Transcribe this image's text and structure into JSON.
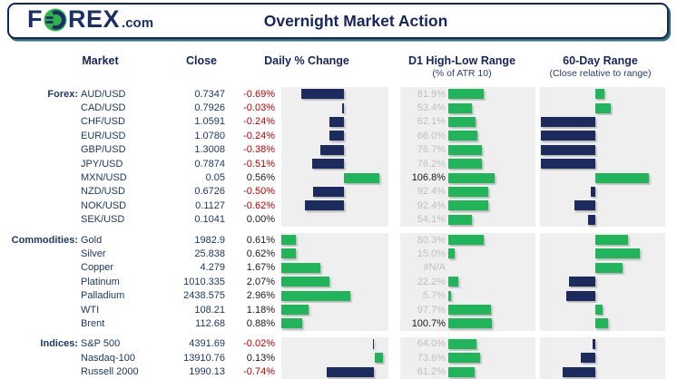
{
  "header": {
    "logo_f": "F",
    "logo_rex": "REX",
    "logo_tld": ".com",
    "title": "Overnight Market Action"
  },
  "columns": {
    "market": "Market",
    "close": "Close",
    "daily": "Daily % Change",
    "d1_title": "D1 High-Low Range",
    "d1_sub": "(% of ATR 10)",
    "sixty_title": "60-Day Range",
    "sixty_sub": "(Close relative to range)"
  },
  "colors": {
    "navy": "#1c2a5e",
    "green": "#22b45a",
    "red": "#c00000",
    "panel_gray": "#efefef",
    "label_gray": "#bfbfbf",
    "header_navy": "#16265a"
  },
  "chart_data": {
    "type": "bar",
    "legend_position": "none",
    "d1_xlim": [
      0,
      200
    ],
    "sixty_xlim": [
      0,
      112.5
    ],
    "sixty_axis": 50,
    "groups": [
      {
        "label": "Forex:",
        "daily_xlim": [
          -1.0,
          0.7
        ],
        "rows": [
          {
            "market": "AUD/USD",
            "close": "0.7347",
            "daily_pct": -0.69,
            "daily_label": "-0.69%",
            "d1_pct": 81.9,
            "d1_label": "81.9%",
            "sixty_pct": 58
          },
          {
            "market": "CAD/USD",
            "close": "0.7926",
            "daily_pct": -0.03,
            "daily_label": "-0.03%",
            "d1_pct": 53.4,
            "d1_label": "53.4%",
            "sixty_pct": 64
          },
          {
            "market": "CHF/USD",
            "close": "1.0591",
            "daily_pct": -0.24,
            "daily_label": "-0.24%",
            "d1_pct": 62.1,
            "d1_label": "62.1%",
            "sixty_pct": 1
          },
          {
            "market": "EUR/USD",
            "close": "1.0780",
            "daily_pct": -0.24,
            "daily_label": "-0.24%",
            "d1_pct": 66.0,
            "d1_label": "66.0%",
            "sixty_pct": 1
          },
          {
            "market": "GBP/USD",
            "close": "1.3008",
            "daily_pct": -0.38,
            "daily_label": "-0.38%",
            "d1_pct": 76.7,
            "d1_label": "76.7%",
            "sixty_pct": 1
          },
          {
            "market": "JPY/USD",
            "close": "0.7874",
            "daily_pct": -0.51,
            "daily_label": "-0.51%",
            "d1_pct": 76.2,
            "d1_label": "76.2%",
            "sixty_pct": 1
          },
          {
            "market": "MXN/USD",
            "close": "0.05",
            "daily_pct": 0.56,
            "daily_label": "0.56%",
            "d1_pct": 106.8,
            "d1_label": "106.8%",
            "sixty_pct": 98
          },
          {
            "market": "NZD/USD",
            "close": "0.6726",
            "daily_pct": -0.5,
            "daily_label": "-0.50%",
            "d1_pct": 92.4,
            "d1_label": "92.4%",
            "sixty_pct": 46
          },
          {
            "market": "NOK/USD",
            "close": "0.1127",
            "daily_pct": -0.62,
            "daily_label": "-0.62%",
            "d1_pct": 92.4,
            "d1_label": "92.4%",
            "sixty_pct": 31
          },
          {
            "market": "SEK/USD",
            "close": "0.1041",
            "daily_pct": 0.0,
            "daily_label": "0.00%",
            "d1_pct": 54.1,
            "d1_label": "54.1%",
            "sixty_pct": 43
          }
        ]
      },
      {
        "label": "Commodities:",
        "daily_xlim": [
          0,
          4.6
        ],
        "rows": [
          {
            "market": "Gold",
            "close": "1982.9",
            "daily_pct": 0.61,
            "daily_label": "0.61%",
            "d1_pct": 80.3,
            "d1_label": "80.3%",
            "sixty_pct": 79
          },
          {
            "market": "Silver",
            "close": "25.838",
            "daily_pct": 0.62,
            "daily_label": "0.62%",
            "d1_pct": 15.0,
            "d1_label": "15.0%",
            "sixty_pct": 90
          },
          {
            "market": "Copper",
            "close": "4.279",
            "daily_pct": 1.67,
            "daily_label": "1.67%",
            "d1_pct": null,
            "d1_label": "#N/A",
            "sixty_pct": 74
          },
          {
            "market": "Platinum",
            "close": "1010.335",
            "daily_pct": 2.07,
            "daily_label": "2.07%",
            "d1_pct": 22.2,
            "d1_label": "22.2%",
            "sixty_pct": 26
          },
          {
            "market": "Palladium",
            "close": "2438.575",
            "daily_pct": 2.96,
            "daily_label": "2.96%",
            "d1_pct": 5.7,
            "d1_label": "5.7%",
            "sixty_pct": 24
          },
          {
            "market": "WTI",
            "close": "108.21",
            "daily_pct": 1.18,
            "daily_label": "1.18%",
            "d1_pct": 97.7,
            "d1_label": "97.7%",
            "sixty_pct": 56
          },
          {
            "market": "Brent",
            "close": "112.68",
            "daily_pct": 0.88,
            "daily_label": "0.88%",
            "d1_pct": 100.7,
            "d1_label": "100.7%",
            "sixty_pct": 61
          }
        ]
      },
      {
        "label": "Indices:",
        "daily_xlim": [
          -1.45,
          0.22
        ],
        "rows": [
          {
            "market": "S&P 500",
            "close": "4391.69",
            "daily_pct": -0.02,
            "daily_label": "-0.02%",
            "d1_pct": 64.0,
            "d1_label": "64.0%",
            "sixty_pct": 47
          },
          {
            "market": "Nasdaq-100",
            "close": "13910.76",
            "daily_pct": 0.13,
            "daily_label": "0.13%",
            "d1_pct": 73.6,
            "d1_label": "73.6%",
            "sixty_pct": 37
          },
          {
            "market": "Russell 2000",
            "close": "1990.13",
            "daily_pct": -0.74,
            "daily_label": "-0.74%",
            "d1_pct": 61.2,
            "d1_label": "61.2%",
            "sixty_pct": 20
          }
        ]
      }
    ]
  }
}
